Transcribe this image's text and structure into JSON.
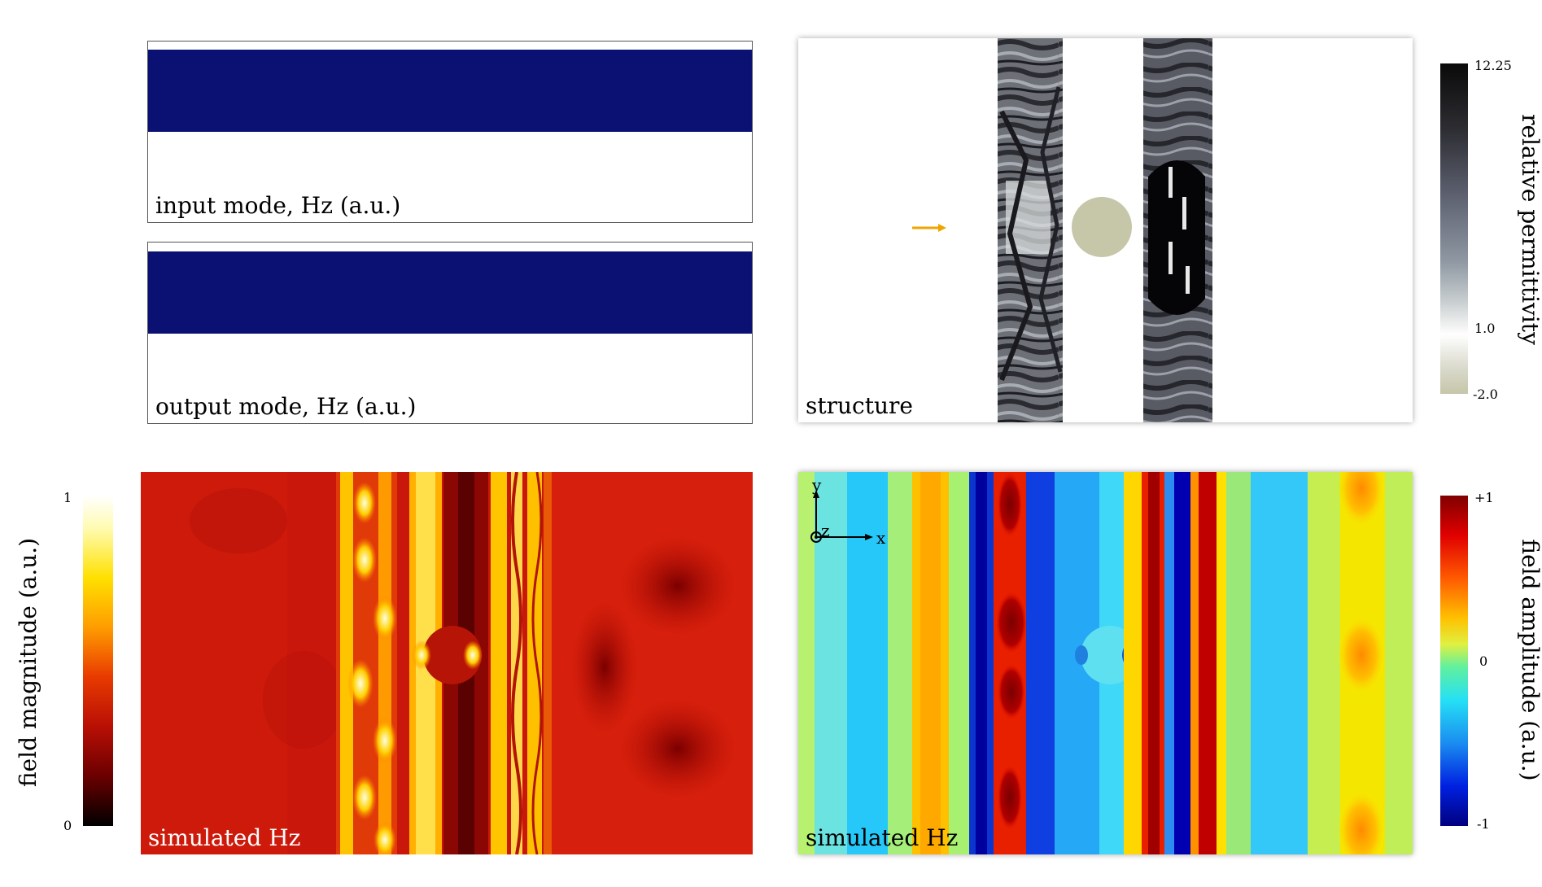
{
  "panels": {
    "input_mode": {
      "label": "input mode, Hz (a.u.)"
    },
    "output_mode": {
      "label": "output mode, Hz (a.u.)"
    },
    "structure": {
      "label": "structure"
    },
    "magnitude": {
      "label": "simulated Hz"
    },
    "amplitude": {
      "label": "simulated Hz"
    }
  },
  "colorbars": {
    "permittivity": {
      "label": "relative permittivity",
      "ticks": [
        "12.25",
        "1.0",
        "-2.0"
      ]
    },
    "magnitude": {
      "label": "field magnitude (a.u.)",
      "ticks": [
        "1",
        "0"
      ]
    },
    "amplitude": {
      "label": "field amplitude (a.u.)",
      "ticks": [
        "+1",
        "0",
        "-1"
      ]
    }
  },
  "axes": {
    "x": "x",
    "y": "y",
    "z": "z"
  },
  "colors": {
    "mode_band": "#0a1172",
    "source_arrow": "#f0a400",
    "particle": "#c6c6a9"
  }
}
